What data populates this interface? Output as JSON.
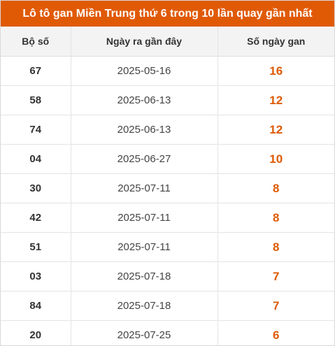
{
  "title": "Lô tô gan Miền Trung thứ 6 trong 10 lần quay gần nhất",
  "columns": [
    "Bộ số",
    "Ngày ra gần đây",
    "Số ngày gan"
  ],
  "rows": [
    {
      "number": "67",
      "date": "2025-05-16",
      "days": "16"
    },
    {
      "number": "58",
      "date": "2025-06-13",
      "days": "12"
    },
    {
      "number": "74",
      "date": "2025-06-13",
      "days": "12"
    },
    {
      "number": "04",
      "date": "2025-06-27",
      "days": "10"
    },
    {
      "number": "30",
      "date": "2025-07-11",
      "days": "8"
    },
    {
      "number": "42",
      "date": "2025-07-11",
      "days": "8"
    },
    {
      "number": "51",
      "date": "2025-07-11",
      "days": "8"
    },
    {
      "number": "03",
      "date": "2025-07-18",
      "days": "7"
    },
    {
      "number": "84",
      "date": "2025-07-18",
      "days": "7"
    },
    {
      "number": "20",
      "date": "2025-07-25",
      "days": "6"
    }
  ],
  "colors": {
    "header_bg": "#e05a06",
    "accent_value": "#dd5a05",
    "column_header_bg": "#f3f3f3"
  }
}
